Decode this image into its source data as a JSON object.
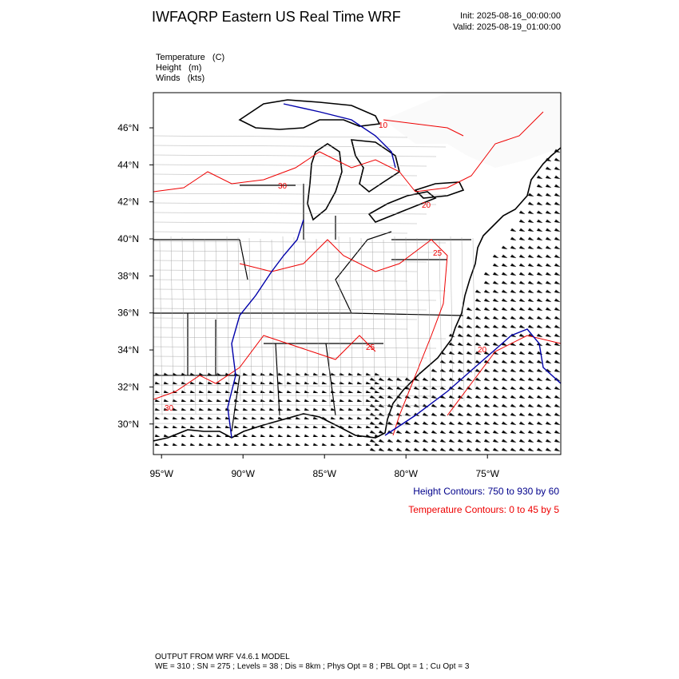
{
  "header": {
    "title": "IWFAQRP Eastern US Real Time WRF",
    "init": "Init: 2025-08-16_00:00:00",
    "valid": "Valid: 2025-08-19_01:00:00"
  },
  "fields": [
    "Temperature   (C)",
    "Height   (m)",
    "Winds   (kts)"
  ],
  "map": {
    "lon_range": [
      -95.5,
      -70.5
    ],
    "lat_range": [
      28.35,
      47.9
    ],
    "x_ticks": [
      {
        "value": -95,
        "label": "95°W"
      },
      {
        "value": -90,
        "label": "90°W"
      },
      {
        "value": -85,
        "label": "85°W"
      },
      {
        "value": -80,
        "label": "80°W"
      },
      {
        "value": -75,
        "label": "75°W"
      }
    ],
    "y_ticks": [
      {
        "value": 30,
        "label": "30°N"
      },
      {
        "value": 32,
        "label": "32°N"
      },
      {
        "value": 34,
        "label": "34°N"
      },
      {
        "value": 36,
        "label": "36°N"
      },
      {
        "value": 38,
        "label": "38°N"
      },
      {
        "value": 40,
        "label": "40°N"
      },
      {
        "value": 42,
        "label": "42°N"
      },
      {
        "value": 44,
        "label": "44°N"
      },
      {
        "value": 46,
        "label": "46°N"
      }
    ],
    "contour_labels": [
      "10",
      "20",
      "25",
      "20",
      "30",
      "30",
      "25"
    ]
  },
  "legend": {
    "height": "Height Contours: 750 to 930 by 60",
    "temperature": "Temperature Contours: 0 to 45 by 5"
  },
  "footer": {
    "line1": "OUTPUT FROM WRF V4.6.1 MODEL",
    "line2": "WE = 310 ; SN = 275 ; Levels = 38 ; Dis = 8km ; Phys Opt = 8 ; PBL Opt = 1 ; Cu Opt = 3"
  }
}
